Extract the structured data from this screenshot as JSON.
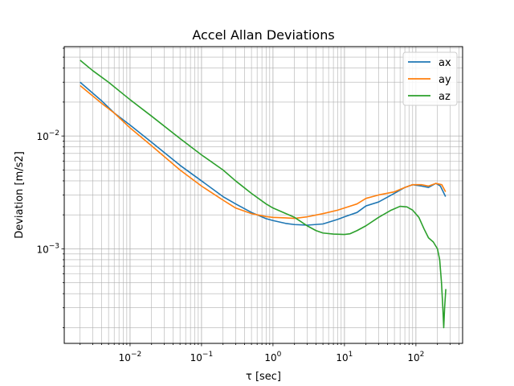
{
  "chart_data": {
    "type": "line",
    "title": "Accel Allan Deviations",
    "xlabel": "τ [sec]",
    "ylabel": "Deviation [m/s2]",
    "xscale": "log",
    "yscale": "log",
    "xlim": [
      0.0012,
      450
    ],
    "ylim": [
      0.000145,
      0.062
    ],
    "grid": "major-and-minor",
    "legend_position": "top-right",
    "x_ticks": [
      {
        "value": 0.01,
        "base": "10",
        "exp": "−2"
      },
      {
        "value": 0.1,
        "base": "10",
        "exp": "−1"
      },
      {
        "value": 1,
        "base": "10",
        "exp": "0"
      },
      {
        "value": 10,
        "base": "10",
        "exp": "1"
      },
      {
        "value": 100,
        "base": "10",
        "exp": "2"
      }
    ],
    "y_ticks": [
      {
        "value": 0.001,
        "base": "10",
        "exp": "−3"
      },
      {
        "value": 0.01,
        "base": "10",
        "exp": "−2"
      }
    ],
    "series": [
      {
        "name": "ax",
        "color": "#1f77b4",
        "points": [
          [
            0.002,
            0.03
          ],
          [
            0.004,
            0.0205
          ],
          [
            0.006,
            0.016
          ],
          [
            0.01,
            0.0125
          ],
          [
            0.02,
            0.0088
          ],
          [
            0.05,
            0.0055
          ],
          [
            0.1,
            0.004
          ],
          [
            0.2,
            0.0029
          ],
          [
            0.3,
            0.0025
          ],
          [
            0.5,
            0.0021
          ],
          [
            0.8,
            0.00185
          ],
          [
            1.0,
            0.00178
          ],
          [
            1.5,
            0.00168
          ],
          [
            2.0,
            0.00164
          ],
          [
            3.0,
            0.00162
          ],
          [
            5.0,
            0.00166
          ],
          [
            8.0,
            0.00182
          ],
          [
            10,
            0.00192
          ],
          [
            15,
            0.0021
          ],
          [
            20,
            0.0024
          ],
          [
            30,
            0.0026
          ],
          [
            50,
            0.0031
          ],
          [
            70,
            0.0035
          ],
          [
            90,
            0.0037
          ],
          [
            120,
            0.0036
          ],
          [
            150,
            0.0035
          ],
          [
            190,
            0.0038
          ],
          [
            220,
            0.0036
          ],
          [
            260,
            0.0029
          ]
        ]
      },
      {
        "name": "ay",
        "color": "#ff7f0e",
        "points": [
          [
            0.002,
            0.028
          ],
          [
            0.004,
            0.0195
          ],
          [
            0.006,
            0.016
          ],
          [
            0.01,
            0.0118
          ],
          [
            0.02,
            0.0082
          ],
          [
            0.05,
            0.005
          ],
          [
            0.1,
            0.0036
          ],
          [
            0.2,
            0.0027
          ],
          [
            0.3,
            0.0023
          ],
          [
            0.5,
            0.00205
          ],
          [
            0.8,
            0.00193
          ],
          [
            1.0,
            0.0019
          ],
          [
            1.5,
            0.00188
          ],
          [
            2.0,
            0.00186
          ],
          [
            3.0,
            0.00192
          ],
          [
            5.0,
            0.00205
          ],
          [
            8.0,
            0.0022
          ],
          [
            10,
            0.0023
          ],
          [
            15,
            0.0025
          ],
          [
            20,
            0.0028
          ],
          [
            30,
            0.003
          ],
          [
            50,
            0.0032
          ],
          [
            70,
            0.0035
          ],
          [
            90,
            0.0037
          ],
          [
            120,
            0.0037
          ],
          [
            150,
            0.0036
          ],
          [
            190,
            0.0038
          ],
          [
            230,
            0.0037
          ],
          [
            260,
            0.0032
          ]
        ]
      },
      {
        "name": "az",
        "color": "#2ca02c",
        "points": [
          [
            0.002,
            0.047
          ],
          [
            0.003,
            0.038
          ],
          [
            0.005,
            0.03
          ],
          [
            0.01,
            0.021
          ],
          [
            0.02,
            0.015
          ],
          [
            0.05,
            0.0095
          ],
          [
            0.1,
            0.0068
          ],
          [
            0.2,
            0.005
          ],
          [
            0.3,
            0.004
          ],
          [
            0.5,
            0.0031
          ],
          [
            0.8,
            0.0025
          ],
          [
            1.0,
            0.0023
          ],
          [
            2.0,
            0.0019
          ],
          [
            3.0,
            0.0016
          ],
          [
            4.0,
            0.00145
          ],
          [
            5.0,
            0.00138
          ],
          [
            7.0,
            0.00135
          ],
          [
            10,
            0.00134
          ],
          [
            12,
            0.00136
          ],
          [
            15,
            0.00145
          ],
          [
            20,
            0.0016
          ],
          [
            30,
            0.0019
          ],
          [
            45,
            0.0022
          ],
          [
            60,
            0.00238
          ],
          [
            75,
            0.00235
          ],
          [
            90,
            0.0022
          ],
          [
            110,
            0.0019
          ],
          [
            130,
            0.0015
          ],
          [
            150,
            0.00125
          ],
          [
            175,
            0.00115
          ],
          [
            200,
            0.001
          ],
          [
            215,
            0.0008
          ],
          [
            228,
            0.0005
          ],
          [
            238,
            0.0003
          ],
          [
            245,
            0.0002
          ],
          [
            252,
            0.0003
          ],
          [
            262,
            0.00044
          ]
        ]
      }
    ]
  }
}
